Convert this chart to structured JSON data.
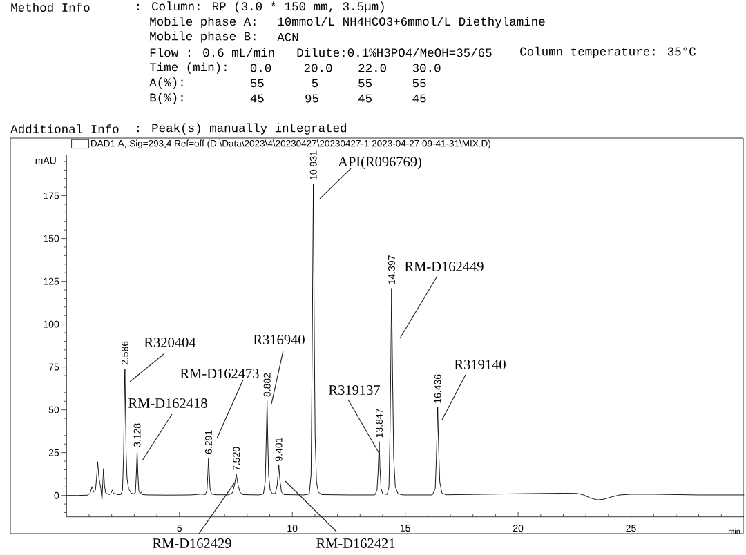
{
  "chart_data": {
    "type": "line",
    "xlabel": "min",
    "ylabel": "mAU",
    "xlim": [
      0,
      30
    ],
    "ylim": [
      -12.5,
      199
    ],
    "xticks": [
      {
        "value": 1,
        "label": null
      },
      {
        "value": 2,
        "label": null
      },
      {
        "value": 3,
        "label": null
      },
      {
        "value": 4,
        "label": null
      },
      5,
      {
        "value": 6,
        "label": null
      },
      {
        "value": 7,
        "label": null
      },
      {
        "value": 8,
        "label": null
      },
      {
        "value": 9,
        "label": null
      },
      10,
      {
        "value": 11,
        "label": null
      },
      {
        "value": 12,
        "label": null
      },
      {
        "value": 13,
        "label": null
      },
      {
        "value": 14,
        "label": null
      },
      15,
      {
        "value": 16,
        "label": null
      },
      {
        "value": 17,
        "label": null
      },
      {
        "value": 18,
        "label": null
      },
      {
        "value": 19,
        "label": null
      },
      20,
      {
        "value": 21,
        "label": null
      },
      {
        "value": 22,
        "label": null
      },
      {
        "value": 23,
        "label": null
      },
      {
        "value": 24,
        "label": null
      },
      25,
      {
        "value": 26,
        "label": null
      },
      {
        "value": 27,
        "label": null
      },
      {
        "value": 28,
        "label": null
      },
      {
        "value": 29,
        "label": null
      }
    ],
    "yticks": [
      {
        "value": -10,
        "label": null
      },
      {
        "value": -5,
        "label": null
      },
      0,
      {
        "value": 5,
        "label": null
      },
      {
        "value": 10,
        "label": null
      },
      {
        "value": 15,
        "label": null
      },
      {
        "value": 20,
        "label": null
      },
      25,
      {
        "value": 30,
        "label": null
      },
      {
        "value": 35,
        "label": null
      },
      {
        "value": 40,
        "label": null
      },
      {
        "value": 45,
        "label": null
      },
      50,
      {
        "value": 55,
        "label": null
      },
      {
        "value": 60,
        "label": null
      },
      {
        "value": 65,
        "label": null
      },
      {
        "value": 70,
        "label": null
      },
      75,
      {
        "value": 80,
        "label": null
      },
      {
        "value": 85,
        "label": null
      },
      {
        "value": 90,
        "label": null
      },
      {
        "value": 95,
        "label": null
      },
      100,
      {
        "value": 105,
        "label": null
      },
      {
        "value": 110,
        "label": null
      },
      {
        "value": 115,
        "label": null
      },
      {
        "value": 120,
        "label": null
      },
      125,
      {
        "value": 130,
        "label": null
      },
      {
        "value": 135,
        "label": null
      },
      {
        "value": 140,
        "label": null
      },
      {
        "value": 145,
        "label": null
      },
      150,
      {
        "value": 155,
        "label": null
      },
      {
        "value": 160,
        "label": null
      },
      {
        "value": 165,
        "label": null
      },
      {
        "value": 170,
        "label": null
      },
      175,
      {
        "value": 180,
        "label": null
      },
      {
        "value": 185,
        "label": null
      },
      {
        "value": 190,
        "label": null
      },
      {
        "value": 195,
        "label": null
      }
    ],
    "legend": "top left",
    "x": [
      0,
      0.5,
      0.95,
      1.05,
      1.13,
      1.2,
      1.28,
      1.33,
      1.38,
      1.43,
      1.48,
      1.52,
      1.57,
      1.6,
      1.64,
      1.68,
      1.73,
      1.8,
      1.9,
      1.98,
      2.03,
      2.08,
      2.15,
      2.25,
      2.4,
      2.48,
      2.53,
      2.56,
      2.586,
      2.61,
      2.64,
      2.68,
      2.75,
      2.85,
      2.95,
      3.05,
      3.09,
      3.128,
      3.16,
      3.2,
      3.26,
      3.31,
      3.36,
      3.6,
      4.5,
      5.5,
      6.0,
      6.15,
      6.22,
      6.26,
      6.291,
      6.32,
      6.36,
      6.43,
      6.6,
      7.2,
      7.35,
      7.44,
      7.52,
      7.6,
      7.68,
      7.8,
      8.5,
      8.72,
      8.8,
      8.85,
      8.882,
      8.91,
      8.95,
      9.02,
      9.12,
      9.25,
      9.33,
      9.401,
      9.45,
      9.52,
      9.62,
      10.5,
      10.75,
      10.83,
      10.88,
      10.931,
      10.97,
      11.01,
      11.07,
      11.15,
      11.3,
      12.5,
      13.65,
      13.75,
      13.8,
      13.847,
      13.88,
      13.93,
      14.0,
      14.2,
      14.28,
      14.33,
      14.397,
      14.44,
      14.49,
      14.56,
      14.68,
      14.9,
      16.2,
      16.33,
      16.38,
      16.436,
      16.48,
      16.53,
      16.62,
      16.8,
      18.0,
      20.0,
      22.0,
      22.6,
      22.9,
      23.2,
      23.5,
      23.8,
      24.1,
      24.5,
      25.0,
      26.0,
      28.0,
      30.0
    ],
    "series": [
      {
        "name": "DAD1 A, Sig=293,4 Ref=off (D:\\Data\\2023\\4\\20230427\\20230427-1 2023-04-27 09-41-31\\MIX.D)",
        "color": "#000000",
        "values": [
          0,
          0,
          0.2,
          1.5,
          5.2,
          2,
          3,
          10,
          19.7,
          11,
          7,
          4,
          -2.8,
          6,
          15.7,
          6,
          1.5,
          1,
          0.5,
          1.5,
          3.2,
          1,
          1.2,
          0.5,
          0.5,
          3,
          25,
          55,
          74,
          52,
          25,
          10,
          4,
          1.5,
          0.8,
          1.5,
          12,
          26,
          13,
          3,
          1,
          2,
          0.5,
          0.3,
          0.2,
          0.3,
          0.8,
          0.5,
          3,
          13,
          22,
          13,
          3.5,
          0.8,
          0.4,
          0.4,
          1.5,
          6,
          12.3,
          6,
          2,
          0.5,
          0.3,
          0.8,
          8,
          35,
          55.4,
          35,
          12,
          3,
          1,
          1.2,
          6,
          17.7,
          9,
          2,
          0.5,
          0.3,
          0.8,
          12,
          85,
          182,
          100,
          35,
          8,
          2,
          0.5,
          0.3,
          0.3,
          3,
          14,
          31.5,
          17,
          4,
          1,
          0.6,
          5,
          40,
          121,
          70,
          22,
          5,
          1,
          0.3,
          0.3,
          4,
          22,
          51.5,
          28,
          8,
          1.5,
          0.4,
          0.6,
          1,
          1.3,
          1.2,
          0.3,
          -1.5,
          -2.6,
          -2.2,
          -1,
          0.3,
          0.7,
          0.7,
          0.3,
          0.3
        ]
      }
    ],
    "annotations": [
      "Method Info",
      ": Column: RP (3.0 * 150 mm, 3.5µm)",
      "Mobile phase A:",
      "10mmol/L NH4HCO3+6mmol/L Diethylamine",
      "Mobile phase B:",
      "ACN",
      "Flow : 0.6 mL/min",
      "Dilute:0.1%H3PO4/MeOH=35/65",
      "Column temperature: 35°C",
      "Time (min):",
      "0.0",
      "20.0",
      "22.0",
      "30.0",
      "A(%):",
      "55",
      "5",
      "55",
      "55",
      "B(%):",
      "45",
      "95",
      "45",
      "45",
      "Additional Info",
      ": Peak(s) manually integrated",
      "R320404",
      "RM-D162418",
      "RM-D162473",
      {
        "text": "RM-D162429",
        "x": 7.45,
        "y": 7.5
      },
      "R316940",
      "RM-D162421",
      "API(R096769)",
      {
        "text": "R319137",
        "x": 13.83,
        "y": 25
      },
      "RM-D162449",
      "R319140",
      {
        "text": "2.586",
        "x": 2.586,
        "y": 74
      },
      {
        "text": "3.128",
        "x": 3.128,
        "y": 26
      },
      {
        "text": "6.291",
        "x": 6.291,
        "y": 22
      },
      {
        "text": "7.520",
        "x": 7.52,
        "y": 12.3
      },
      {
        "text": "8.882",
        "x": 8.882,
        "y": 55.4
      },
      {
        "text": "9.401",
        "x": 9.401,
        "y": 17.7
      },
      {
        "text": "10.931",
        "x": 10.931,
        "y": 182
      },
      {
        "text": "13.847",
        "x": 13.847,
        "y": 31.5
      },
      {
        "text": "14.397",
        "x": 14.397,
        "y": 121
      },
      {
        "text": "16.436",
        "x": 16.436,
        "y": 51.5
      }
    ]
  }
}
